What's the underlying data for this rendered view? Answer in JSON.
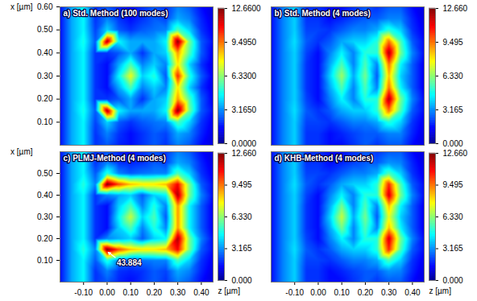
{
  "chart_data": [
    {
      "type": "heatmap",
      "title": "a) Std. Method (100 modes)",
      "color": "jet",
      "ylabel": "x [µm]",
      "tick_labels": "y",
      "xlim": [
        -0.2,
        0.45
      ],
      "ylim": [
        0,
        0.6
      ],
      "yticks": [
        {
          "value": 0.1,
          "label": "0.10"
        },
        {
          "value": 0.2,
          "label": "0.20"
        },
        {
          "value": 0.3,
          "label": "0.30"
        },
        {
          "value": 0.4,
          "label": "0.40"
        },
        {
          "value": 0.5,
          "label": "0.50"
        },
        {
          "value": 0.6,
          "label": "0.60"
        }
      ],
      "x": [
        -0.2,
        -0.15,
        -0.1,
        -0.05,
        0,
        0.05,
        0.1,
        0.15,
        0.2,
        0.25,
        0.3,
        0.35,
        0.4,
        0.45
      ],
      "y": [
        0,
        0.05,
        0.1,
        0.15,
        0.2,
        0.25,
        0.3,
        0.35,
        0.4,
        0.45,
        0.5,
        0.55,
        0.6
      ],
      "values": [
        [
          1.5,
          3.5,
          4.5,
          2.0,
          2.5,
          1.8,
          1.5,
          2.0,
          2.5,
          2.0,
          3.0,
          2.5,
          1.5,
          1.0
        ],
        [
          1.5,
          3.5,
          4.5,
          2.0,
          3.0,
          2.0,
          1.5,
          2.0,
          2.5,
          2.2,
          3.5,
          3.0,
          1.8,
          1.0
        ],
        [
          1.5,
          3.5,
          4.5,
          2.2,
          4.0,
          2.5,
          2.0,
          2.5,
          2.8,
          3.0,
          5.5,
          4.0,
          2.0,
          1.2
        ],
        [
          1.5,
          3.5,
          4.8,
          2.5,
          12.0,
          4.5,
          3.5,
          3.5,
          3.5,
          4.5,
          12.5,
          6.0,
          2.5,
          1.5
        ],
        [
          1.5,
          3.5,
          4.5,
          2.0,
          2.0,
          2.5,
          3.5,
          2.0,
          3.5,
          4.0,
          9.0,
          5.5,
          2.5,
          1.2
        ],
        [
          1.5,
          3.5,
          4.5,
          2.0,
          1.5,
          3.5,
          5.5,
          3.0,
          4.0,
          3.0,
          8.0,
          4.0,
          2.0,
          1.0
        ],
        [
          1.5,
          3.5,
          4.5,
          2.0,
          1.5,
          4.5,
          7.5,
          4.0,
          5.0,
          2.5,
          10.5,
          5.0,
          2.5,
          1.2
        ],
        [
          1.5,
          3.5,
          4.5,
          2.0,
          1.5,
          3.5,
          5.5,
          3.0,
          4.0,
          3.0,
          8.0,
          4.0,
          2.0,
          1.0
        ],
        [
          1.5,
          3.5,
          4.5,
          2.0,
          2.0,
          2.5,
          3.5,
          2.0,
          3.5,
          4.0,
          9.0,
          5.5,
          2.5,
          1.2
        ],
        [
          1.5,
          3.5,
          4.8,
          2.5,
          12.0,
          4.5,
          3.5,
          3.5,
          3.5,
          4.5,
          12.5,
          6.0,
          2.5,
          1.5
        ],
        [
          1.5,
          3.5,
          4.5,
          2.2,
          4.0,
          2.5,
          2.0,
          2.5,
          2.8,
          3.0,
          5.5,
          4.0,
          2.0,
          1.2
        ],
        [
          1.5,
          3.5,
          4.5,
          2.0,
          3.0,
          2.0,
          1.5,
          2.0,
          2.5,
          2.2,
          3.5,
          3.0,
          1.8,
          1.0
        ],
        [
          1.5,
          3.5,
          4.5,
          2.0,
          2.5,
          1.8,
          1.5,
          2.0,
          2.5,
          2.0,
          3.0,
          2.5,
          1.5,
          1.0
        ]
      ],
      "colorbar": {
        "range": [
          0,
          12.66
        ],
        "ticks": [
          {
            "value": 0,
            "label": "0.0000"
          },
          {
            "value": 3.165,
            "label": "3.1650"
          },
          {
            "value": 6.33,
            "label": "6.3300"
          },
          {
            "value": 9.495,
            "label": "9.4950"
          },
          {
            "value": 12.66,
            "label": "12.6600"
          }
        ]
      }
    },
    {
      "type": "heatmap",
      "title": "b) Std. Method (4 modes)",
      "color": "jet",
      "tick_labels": false,
      "xlim": [
        -0.2,
        0.45
      ],
      "ylim": [
        0,
        0.6
      ],
      "x": [
        -0.2,
        -0.15,
        -0.1,
        -0.05,
        0,
        0.05,
        0.1,
        0.15,
        0.2,
        0.25,
        0.3,
        0.35,
        0.4,
        0.45
      ],
      "y": [
        0,
        0.05,
        0.1,
        0.15,
        0.2,
        0.25,
        0.3,
        0.35,
        0.4,
        0.45,
        0.5,
        0.55,
        0.6
      ],
      "values": [
        [
          1.5,
          3.0,
          4.0,
          2.0,
          2.0,
          1.5,
          1.5,
          2.0,
          2.5,
          2.0,
          2.5,
          2.5,
          1.5,
          1.0
        ],
        [
          1.5,
          3.0,
          4.0,
          2.0,
          2.0,
          1.5,
          1.8,
          2.2,
          2.5,
          2.5,
          3.0,
          3.0,
          1.8,
          1.0
        ],
        [
          1.5,
          3.0,
          4.0,
          2.2,
          2.2,
          2.0,
          2.5,
          3.0,
          3.0,
          3.5,
          5.0,
          4.0,
          2.0,
          1.2
        ],
        [
          1.5,
          3.0,
          4.2,
          2.5,
          2.0,
          2.5,
          3.5,
          4.0,
          4.0,
          5.0,
          9.5,
          5.5,
          2.5,
          1.5
        ],
        [
          1.5,
          3.0,
          4.0,
          2.2,
          1.5,
          3.0,
          4.5,
          3.0,
          5.0,
          5.0,
          12.0,
          6.0,
          3.0,
          1.5
        ],
        [
          1.5,
          3.0,
          4.0,
          2.0,
          1.5,
          3.5,
          5.5,
          3.0,
          5.5,
          3.0,
          9.5,
          4.5,
          2.5,
          1.2
        ],
        [
          1.5,
          3.0,
          4.0,
          2.0,
          1.5,
          4.0,
          6.5,
          3.5,
          6.0,
          2.5,
          8.5,
          4.0,
          2.5,
          1.2
        ],
        [
          1.5,
          3.0,
          4.0,
          2.0,
          1.5,
          3.5,
          5.5,
          3.0,
          5.5,
          3.0,
          9.5,
          4.5,
          2.5,
          1.2
        ],
        [
          1.5,
          3.0,
          4.0,
          2.2,
          1.5,
          3.0,
          4.5,
          3.0,
          5.0,
          5.0,
          12.0,
          6.0,
          3.0,
          1.5
        ],
        [
          1.5,
          3.0,
          4.2,
          2.5,
          2.0,
          2.5,
          3.5,
          4.0,
          4.0,
          5.0,
          9.5,
          5.5,
          2.5,
          1.5
        ],
        [
          1.5,
          3.0,
          4.0,
          2.2,
          2.2,
          2.0,
          2.5,
          3.0,
          3.0,
          3.5,
          5.0,
          4.0,
          2.0,
          1.2
        ],
        [
          1.5,
          3.0,
          4.0,
          2.0,
          2.0,
          1.5,
          1.8,
          2.2,
          2.5,
          2.5,
          3.0,
          3.0,
          1.8,
          1.0
        ],
        [
          1.5,
          3.0,
          4.0,
          2.0,
          2.0,
          1.5,
          1.5,
          2.0,
          2.5,
          2.0,
          2.5,
          2.5,
          1.5,
          1.0
        ]
      ],
      "colorbar": {
        "range": [
          0,
          12.66
        ],
        "ticks": [
          {
            "value": 0,
            "label": "0.000"
          },
          {
            "value": 3.165,
            "label": "3.165"
          },
          {
            "value": 6.33,
            "label": "6.330"
          },
          {
            "value": 9.495,
            "label": "9.495"
          },
          {
            "value": 12.66,
            "label": "12.660"
          }
        ]
      }
    },
    {
      "type": "heatmap",
      "title": "c) PLMJ-Method (4 modes)",
      "color": "jet",
      "xlabel": "z [µm]",
      "ylabel": "x [µm]",
      "tick_labels": true,
      "xlim": [
        -0.2,
        0.45
      ],
      "ylim": [
        0,
        0.6
      ],
      "xticks": [
        {
          "value": -0.1,
          "label": "-0.10"
        },
        {
          "value": 0,
          "label": "0.00"
        },
        {
          "value": 0.1,
          "label": "0.10"
        },
        {
          "value": 0.2,
          "label": "0.20"
        },
        {
          "value": 0.3,
          "label": "0.30"
        },
        {
          "value": 0.4,
          "label": "0.40"
        }
      ],
      "yticks": [
        {
          "value": 0.1,
          "label": "0.10"
        },
        {
          "value": 0.2,
          "label": "0.20"
        },
        {
          "value": 0.3,
          "label": "0.30"
        },
        {
          "value": 0.4,
          "label": "0.40"
        },
        {
          "value": 0.5,
          "label": "0.50"
        }
      ],
      "x": [
        -0.2,
        -0.15,
        -0.1,
        -0.05,
        0,
        0.05,
        0.1,
        0.15,
        0.2,
        0.25,
        0.3,
        0.35,
        0.4,
        0.45
      ],
      "y": [
        0,
        0.05,
        0.1,
        0.15,
        0.2,
        0.25,
        0.3,
        0.35,
        0.4,
        0.45,
        0.5,
        0.55,
        0.6
      ],
      "values": [
        [
          1.5,
          3.5,
          4.5,
          2.0,
          2.5,
          1.8,
          1.5,
          2.0,
          2.5,
          2.0,
          3.0,
          2.5,
          1.5,
          1.0
        ],
        [
          1.5,
          3.5,
          4.5,
          2.0,
          3.0,
          2.0,
          1.8,
          2.0,
          2.5,
          2.2,
          3.5,
          3.0,
          1.8,
          1.0
        ],
        [
          1.5,
          3.5,
          4.5,
          2.5,
          5.0,
          3.0,
          2.5,
          2.8,
          3.0,
          3.0,
          5.5,
          4.0,
          2.0,
          1.2
        ],
        [
          1.5,
          3.5,
          5.0,
          3.0,
          12.6,
          10.0,
          8.5,
          8.0,
          8.0,
          8.5,
          11.0,
          6.0,
          2.5,
          1.5
        ],
        [
          1.5,
          3.5,
          4.5,
          2.0,
          3.0,
          3.5,
          4.0,
          2.5,
          4.0,
          4.5,
          12.0,
          6.0,
          3.0,
          1.5
        ],
        [
          1.5,
          3.5,
          4.5,
          2.0,
          1.5,
          4.0,
          5.5,
          3.0,
          5.0,
          3.0,
          9.0,
          4.5,
          2.5,
          1.2
        ],
        [
          1.5,
          3.5,
          4.5,
          2.0,
          1.5,
          4.5,
          7.0,
          4.0,
          5.5,
          2.5,
          9.0,
          4.5,
          2.5,
          1.2
        ],
        [
          1.5,
          3.5,
          4.5,
          2.0,
          1.5,
          4.0,
          5.5,
          3.0,
          5.0,
          3.0,
          9.0,
          4.5,
          2.5,
          1.2
        ],
        [
          1.5,
          3.5,
          4.5,
          2.0,
          3.0,
          3.5,
          4.0,
          2.5,
          4.0,
          4.5,
          12.0,
          6.0,
          3.0,
          1.5
        ],
        [
          1.5,
          3.5,
          5.0,
          3.0,
          12.6,
          10.0,
          8.5,
          8.0,
          8.0,
          8.5,
          11.0,
          6.0,
          2.5,
          1.5
        ],
        [
          1.5,
          3.5,
          4.5,
          2.5,
          5.0,
          3.0,
          2.5,
          2.8,
          3.0,
          3.0,
          5.5,
          4.0,
          2.0,
          1.2
        ],
        [
          1.5,
          3.5,
          4.5,
          2.0,
          3.0,
          2.0,
          1.8,
          2.0,
          2.5,
          2.2,
          3.5,
          3.0,
          1.8,
          1.0
        ],
        [
          1.5,
          3.5,
          4.5,
          2.0,
          2.5,
          1.8,
          1.5,
          2.0,
          2.5,
          2.0,
          3.0,
          2.5,
          1.5,
          1.0
        ]
      ],
      "annotations": [
        {
          "text": "43.884",
          "x": 0.0,
          "y": 0.14
        }
      ],
      "colorbar": {
        "range": [
          0,
          12.66
        ],
        "ticks": [
          {
            "value": 0,
            "label": "0.000"
          },
          {
            "value": 3.165,
            "label": "3.165"
          },
          {
            "value": 6.33,
            "label": "6.330"
          },
          {
            "value": 9.495,
            "label": "9.495"
          },
          {
            "value": 12.66,
            "label": "12.660"
          }
        ]
      }
    },
    {
      "type": "heatmap",
      "title": "d) KHB-Method (4 modes)",
      "color": "jet",
      "xlabel": "z [µm]",
      "tick_labels": "x",
      "xlim": [
        -0.2,
        0.45
      ],
      "ylim": [
        0,
        0.6
      ],
      "xticks": [
        {
          "value": -0.1,
          "label": "-0.10"
        },
        {
          "value": 0,
          "label": "0.00"
        },
        {
          "value": 0.1,
          "label": "0.10"
        },
        {
          "value": 0.2,
          "label": "0.20"
        },
        {
          "value": 0.3,
          "label": "0.30"
        },
        {
          "value": 0.4,
          "label": "0.40"
        }
      ],
      "x": [
        -0.2,
        -0.15,
        -0.1,
        -0.05,
        0,
        0.05,
        0.1,
        0.15,
        0.2,
        0.25,
        0.3,
        0.35,
        0.4,
        0.45
      ],
      "y": [
        0,
        0.05,
        0.1,
        0.15,
        0.2,
        0.25,
        0.3,
        0.35,
        0.4,
        0.45,
        0.5,
        0.55,
        0.6
      ],
      "values": [
        [
          1.5,
          3.0,
          4.0,
          2.0,
          2.0,
          1.5,
          1.5,
          2.0,
          2.5,
          2.0,
          2.5,
          2.5,
          1.5,
          1.0
        ],
        [
          1.5,
          3.0,
          4.0,
          2.0,
          2.0,
          1.5,
          1.8,
          2.2,
          2.5,
          2.5,
          3.2,
          3.0,
          1.8,
          1.0
        ],
        [
          1.5,
          3.0,
          4.0,
          2.2,
          2.2,
          2.0,
          2.5,
          3.0,
          3.0,
          3.5,
          5.5,
          4.0,
          2.0,
          1.2
        ],
        [
          1.5,
          3.0,
          4.2,
          2.5,
          2.0,
          2.5,
          3.5,
          4.0,
          4.0,
          5.0,
          10.5,
          5.5,
          2.5,
          1.5
        ],
        [
          1.5,
          3.0,
          4.0,
          2.2,
          1.5,
          3.0,
          4.5,
          3.0,
          5.0,
          5.0,
          11.5,
          6.0,
          3.0,
          1.5
        ],
        [
          1.5,
          3.0,
          4.0,
          2.0,
          1.5,
          3.5,
          6.0,
          3.0,
          5.5,
          3.0,
          8.5,
          4.5,
          2.5,
          1.2
        ],
        [
          1.5,
          3.0,
          4.0,
          2.0,
          1.5,
          4.0,
          7.0,
          3.5,
          6.0,
          2.5,
          7.5,
          4.0,
          2.5,
          1.2
        ],
        [
          1.5,
          3.0,
          4.0,
          2.0,
          1.5,
          3.5,
          6.0,
          3.0,
          5.5,
          3.0,
          8.5,
          4.5,
          2.5,
          1.2
        ],
        [
          1.5,
          3.0,
          4.0,
          2.2,
          1.5,
          3.0,
          4.5,
          3.0,
          5.0,
          5.0,
          11.5,
          6.0,
          3.0,
          1.5
        ],
        [
          1.5,
          3.0,
          4.2,
          2.5,
          2.0,
          2.5,
          3.5,
          4.0,
          4.0,
          5.0,
          10.5,
          5.5,
          2.5,
          1.5
        ],
        [
          1.5,
          3.0,
          4.0,
          2.2,
          2.2,
          2.0,
          2.5,
          3.0,
          3.0,
          3.5,
          5.5,
          4.0,
          2.0,
          1.2
        ],
        [
          1.5,
          3.0,
          4.0,
          2.0,
          2.0,
          1.5,
          1.8,
          2.2,
          2.5,
          2.5,
          3.2,
          3.0,
          1.8,
          1.0
        ],
        [
          1.5,
          3.0,
          4.0,
          2.0,
          2.0,
          1.5,
          1.5,
          2.0,
          2.5,
          2.0,
          2.5,
          2.5,
          1.5,
          1.0
        ]
      ],
      "colorbar": {
        "range": [
          0,
          12.66
        ],
        "ticks": [
          {
            "value": 0,
            "label": "0.000"
          },
          {
            "value": 3.165,
            "label": "3.165"
          },
          {
            "value": 6.33,
            "label": "6.330"
          },
          {
            "value": 9.495,
            "label": "9.495"
          },
          {
            "value": 12.66,
            "label": "12.660"
          }
        ]
      }
    }
  ]
}
